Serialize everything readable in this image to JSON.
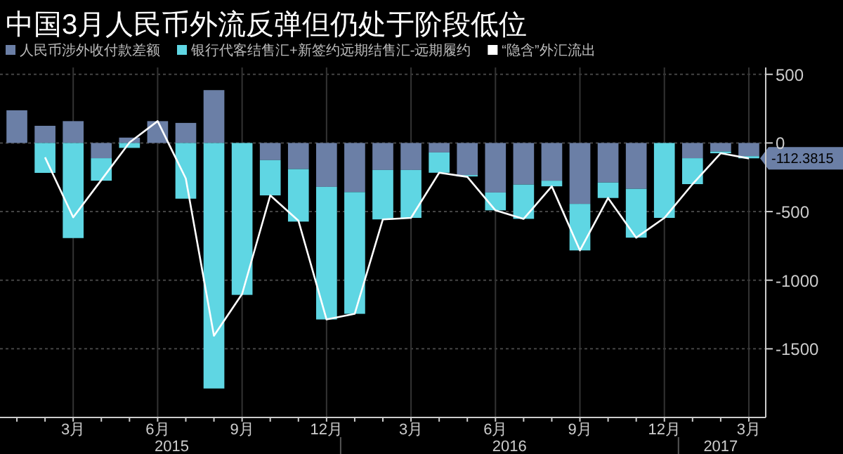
{
  "chart_data": {
    "type": "bar",
    "stacked": true,
    "title": "中国3月人民币外流反弹但仍处于阶段低位",
    "categories": [
      null,
      null,
      "3月",
      null,
      null,
      "6月",
      null,
      null,
      "9月",
      null,
      null,
      "12月",
      null,
      null,
      "3月",
      null,
      null,
      "6月",
      null,
      null,
      "9月",
      null,
      null,
      "12月",
      null,
      null,
      "3月"
    ],
    "series": [
      {
        "name": "人民币涉外收付款差额",
        "color": "#6b7fa6",
        "values": [
          238,
          125,
          159,
          -111,
          39,
          159,
          146,
          385,
          null,
          -125,
          -190,
          -320,
          -358,
          -197,
          -197,
          -69,
          -234,
          -361,
          -303,
          -275,
          -444,
          -288,
          -334,
          null,
          -111,
          -62,
          -96
        ]
      },
      {
        "name": "银行代客结售汇+新签约远期结售汇-远期履约",
        "color": "#5fd6e3",
        "values": [
          null,
          -218,
          -693,
          -164,
          -36,
          null,
          -406,
          -1789,
          -1107,
          -257,
          -383,
          -966,
          -887,
          -360,
          -349,
          -148,
          -10,
          -130,
          -250,
          -41,
          -339,
          -113,
          -356,
          -546,
          -189,
          -13,
          -16
        ]
      },
      {
        "name": "“隐含”外汇流出",
        "type": "line",
        "color": "#ffffff",
        "values": [
          null,
          -105,
          -542,
          -270,
          3,
          159,
          -259,
          -1405,
          -1100,
          -382,
          -566,
          -1286,
          -1245,
          -557,
          -546,
          -217,
          -247,
          -491,
          -553,
          -316,
          -783,
          -401,
          -690,
          -546,
          -300,
          -75,
          -112.3815
        ],
        "value_labels": [
          null,
          null,
          null,
          null,
          null,
          null,
          null,
          null,
          null,
          null,
          null,
          null,
          null,
          null,
          null,
          null,
          null,
          null,
          null,
          null,
          null,
          null,
          null,
          null,
          null,
          null,
          "-112.3815"
        ]
      }
    ],
    "annotations": [
      "2015",
      "2016",
      "2017"
    ],
    "ylim": [
      -2000,
      550
    ],
    "yticks": [
      500,
      0,
      -500,
      -1000,
      -1500
    ],
    "grid": true,
    "legend": "top"
  }
}
